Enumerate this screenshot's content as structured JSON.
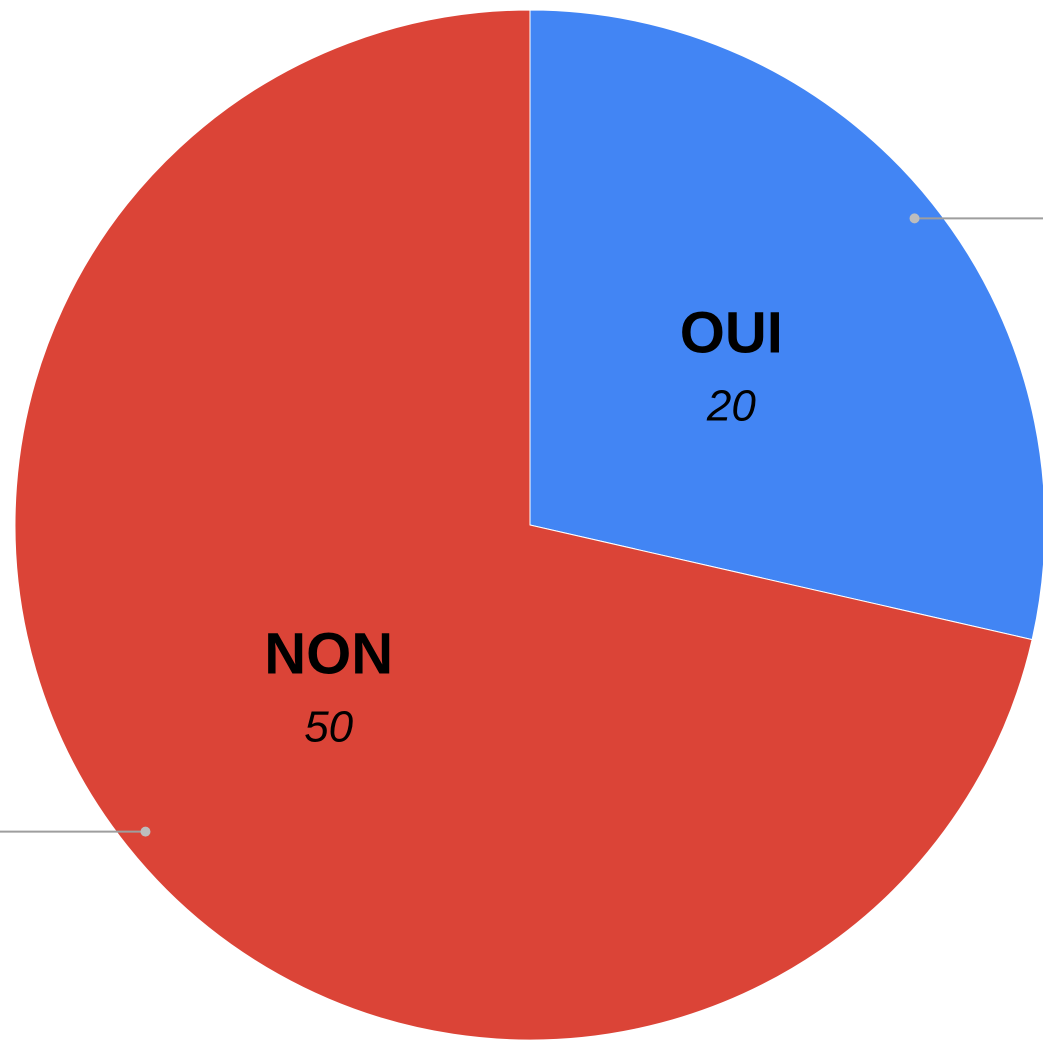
{
  "chart_data": {
    "type": "pie",
    "categories": [
      "OUI",
      "NON"
    ],
    "values": [
      20,
      50
    ],
    "colors": [
      "#4285f4",
      "#db4437"
    ]
  }
}
